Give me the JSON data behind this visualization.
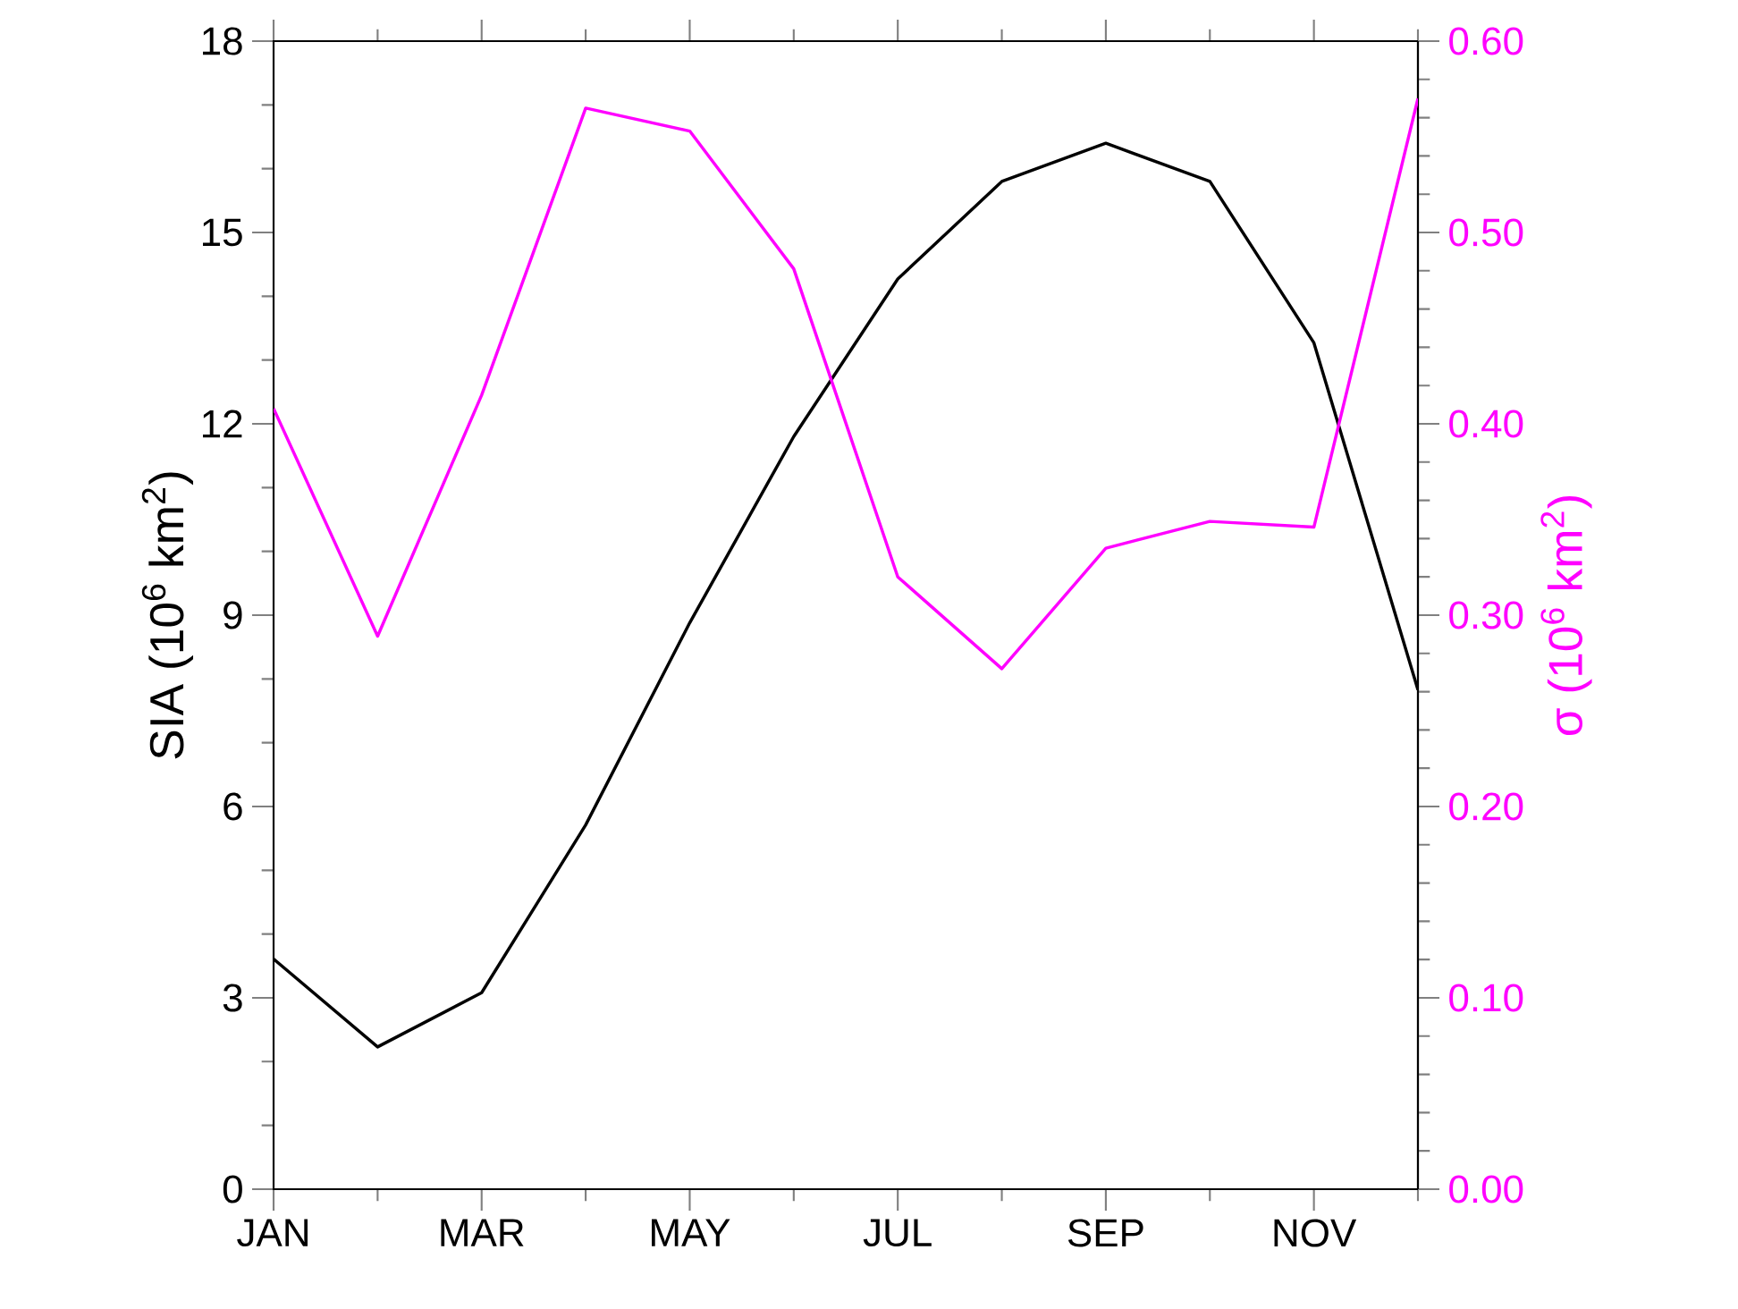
{
  "chart_data": {
    "type": "line",
    "categories": [
      "JAN",
      null,
      "MAR",
      null,
      "MAY",
      null,
      "JUL",
      null,
      "SEP",
      null,
      "NOV",
      null
    ],
    "ylabel": "SIA (10$^{6}$ km$^{2}$)",
    "y2label": "σ (10$^{6}$ km$^{2}$)",
    "ylim": [
      0,
      18
    ],
    "yticks": [
      0,
      3,
      6,
      9,
      12,
      15,
      18
    ],
    "y2lim": [
      0,
      0.6
    ],
    "y2ticks": [
      {
        "value": 0,
        "label": "0.00"
      },
      {
        "value": 0.1,
        "label": "0.10"
      },
      {
        "value": 0.2,
        "label": "0.20"
      },
      {
        "value": 0.3,
        "label": "0.30"
      },
      {
        "value": 0.4,
        "label": "0.40"
      },
      {
        "value": 0.5,
        "label": "0.50"
      },
      {
        "value": 0.6,
        "label": "0.60"
      }
    ],
    "series": [
      {
        "color": "#000000",
        "values": [
          3.61,
          2.23,
          3.08,
          5.71,
          8.88,
          11.8,
          14.27,
          15.8,
          16.4,
          15.8,
          13.27,
          7.83
        ]
      },
      {
        "color": "#ff00ff",
        "axis": "y2",
        "values": [
          0.408,
          0.289,
          0.415,
          0.565,
          0.553,
          0.481,
          0.32,
          0.272,
          0.335,
          0.349,
          0.346,
          0.57
        ]
      }
    ]
  }
}
